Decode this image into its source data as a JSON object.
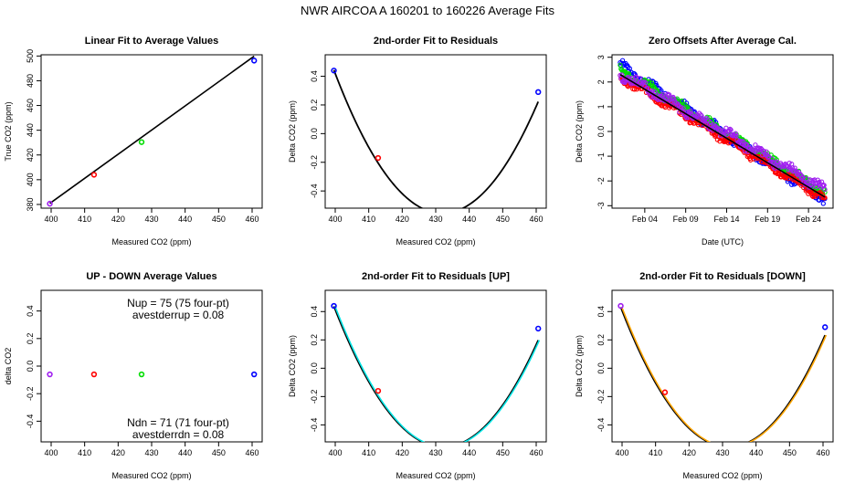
{
  "title": "NWR   AIRCOA A   160201 to 160226   Average Fits",
  "chart_data": [
    {
      "type": "scatter",
      "title": "Linear Fit to Average Values",
      "xlabel": "Measured CO2 (ppm)",
      "ylabel": "True CO2 (ppm)",
      "xlim": [
        397,
        463
      ],
      "ylim": [
        377,
        501
      ],
      "xticks": [
        400,
        410,
        420,
        430,
        440,
        450,
        460
      ],
      "yticks": [
        380,
        400,
        420,
        440,
        460,
        480,
        500
      ],
      "points": [
        {
          "x": 399.6,
          "y": 380.6,
          "color": "#a020f0"
        },
        {
          "x": 412.8,
          "y": 404.0,
          "color": "#ff0000"
        },
        {
          "x": 427.0,
          "y": 430.4,
          "color": "#00dd00"
        },
        {
          "x": 460.6,
          "y": 496.3,
          "color": "#0000ff"
        }
      ],
      "lines": [
        {
          "kind": "linear",
          "x_range": [
            399.6,
            460.6
          ],
          "coef": [
            -398.8,
            1.951
          ],
          "color": "#000000"
        }
      ]
    },
    {
      "type": "scatter",
      "title": "2nd-order Fit to Residuals",
      "xlabel": "Measured CO2 (ppm)",
      "ylabel": "Delta CO2 (ppm)",
      "xlim": [
        397,
        463
      ],
      "ylim": [
        -0.52,
        0.55
      ],
      "xticks": [
        400,
        410,
        420,
        430,
        440,
        450,
        460
      ],
      "yticks": [
        -0.4,
        -0.2,
        0.0,
        0.2,
        0.4
      ],
      "points": [
        {
          "x": 399.6,
          "y": 0.44,
          "color": "#0000ff"
        },
        {
          "x": 412.8,
          "y": -0.17,
          "color": "#ff0000"
        },
        {
          "x": 460.6,
          "y": 0.29,
          "color": "#0000ff"
        }
      ],
      "lines": [
        {
          "kind": "quadratic",
          "vertex": [
            432.0,
            -0.556
          ],
          "a": 0.000952,
          "x_range": [
            399.6,
            460.6
          ],
          "colors": [
            "#000000"
          ]
        }
      ]
    },
    {
      "type": "scatter",
      "title": "Zero Offsets After Average Cal.",
      "xlabel": "Date (UTC)",
      "ylabel": "Delta CO2 (ppm)",
      "xlim": [
        "2016-01-31",
        "2016-02-27"
      ],
      "ylim": [
        -3.1,
        3.1
      ],
      "xticks": [
        "Feb 04",
        "Feb 09",
        "Feb 14",
        "Feb 19",
        "Feb 24"
      ],
      "yticks": [
        -3,
        -2,
        -1,
        0,
        1,
        2,
        3
      ],
      "series": [
        {
          "color": "#0000ff",
          "start": [
            "2016-02-01",
            2.65
          ],
          "end": [
            "2016-02-26",
            -2.75
          ],
          "spread": 0.17
        },
        {
          "color": "#00dd00",
          "start": [
            "2016-02-01",
            2.5
          ],
          "end": [
            "2016-02-26",
            -2.45
          ],
          "spread": 0.12
        },
        {
          "color": "#ff0000",
          "start": [
            "2016-02-01",
            2.2
          ],
          "end": [
            "2016-02-26",
            -2.7
          ],
          "spread": 0.12
        },
        {
          "color": "#a020f0",
          "start": [
            "2016-02-01",
            2.35
          ],
          "end": [
            "2016-02-26",
            -2.35
          ],
          "spread": 0.17
        }
      ],
      "lines": [
        {
          "kind": "linear_date",
          "start": [
            "2016-02-01",
            2.3
          ],
          "end": [
            "2016-02-26",
            -2.65
          ],
          "color": "#000000"
        }
      ]
    },
    {
      "type": "scatter",
      "title": "UP - DOWN Average Values",
      "xlabel": "Measured CO2 (ppm)",
      "ylabel": "delta CO2",
      "xlim": [
        397,
        463
      ],
      "ylim": [
        -0.55,
        0.55
      ],
      "xticks": [
        400,
        410,
        420,
        430,
        440,
        450,
        460
      ],
      "yticks": [
        -0.4,
        -0.2,
        0.0,
        0.2,
        0.4
      ],
      "points": [
        {
          "x": 399.6,
          "y": -0.06,
          "color": "#a020f0"
        },
        {
          "x": 412.8,
          "y": -0.06,
          "color": "#ff0000"
        },
        {
          "x": 427.0,
          "y": -0.06,
          "color": "#00dd00"
        },
        {
          "x": 460.6,
          "y": -0.06,
          "color": "#0000ff"
        }
      ],
      "annotations": {
        "nup": "Nup = 75 (75 four-pt)",
        "avestderrup": "avestderrup =  0.08",
        "ndn": "Ndn = 71 (71 four-pt)",
        "avestderrdn": "avestderrdn =  0.08"
      }
    },
    {
      "type": "scatter",
      "title": "2nd-order Fit to Residuals [UP]",
      "xlabel": "Measured CO2 (ppm)",
      "ylabel": "Delta CO2 (ppm)",
      "xlim": [
        397,
        463
      ],
      "ylim": [
        -0.52,
        0.55
      ],
      "xticks": [
        400,
        410,
        420,
        430,
        440,
        450,
        460
      ],
      "yticks": [
        -0.4,
        -0.2,
        0.0,
        0.2,
        0.4
      ],
      "points": [
        {
          "x": 399.6,
          "y": 0.44,
          "color": "#0000ff"
        },
        {
          "x": 412.8,
          "y": -0.16,
          "color": "#ff0000"
        },
        {
          "x": 460.6,
          "y": 0.28,
          "color": "#0000ff"
        }
      ],
      "lines": [
        {
          "kind": "quadratic",
          "vertex": [
            432.2,
            -0.556
          ],
          "a": 0.000935,
          "x_range": [
            399.6,
            460.6
          ],
          "colors": [
            "#000000",
            "#00e5e5"
          ]
        }
      ]
    },
    {
      "type": "scatter",
      "title": "2nd-order Fit to Residuals [DOWN]",
      "xlabel": "Measured CO2 (ppm)",
      "ylabel": "Delta CO2 (ppm)",
      "xlim": [
        397,
        463
      ],
      "ylim": [
        -0.52,
        0.55
      ],
      "xticks": [
        400,
        410,
        420,
        430,
        440,
        450,
        460
      ],
      "yticks": [
        -0.4,
        -0.2,
        0.0,
        0.2,
        0.4
      ],
      "points": [
        {
          "x": 399.6,
          "y": 0.44,
          "color": "#a020f0"
        },
        {
          "x": 412.8,
          "y": -0.17,
          "color": "#ff0000"
        },
        {
          "x": 460.6,
          "y": 0.29,
          "color": "#0000ff"
        }
      ],
      "lines": [
        {
          "kind": "quadratic",
          "vertex": [
            431.8,
            -0.556
          ],
          "a": 0.000952,
          "x_range": [
            399.6,
            460.6
          ],
          "colors": [
            "#000000",
            "#ffa500"
          ]
        }
      ]
    }
  ]
}
